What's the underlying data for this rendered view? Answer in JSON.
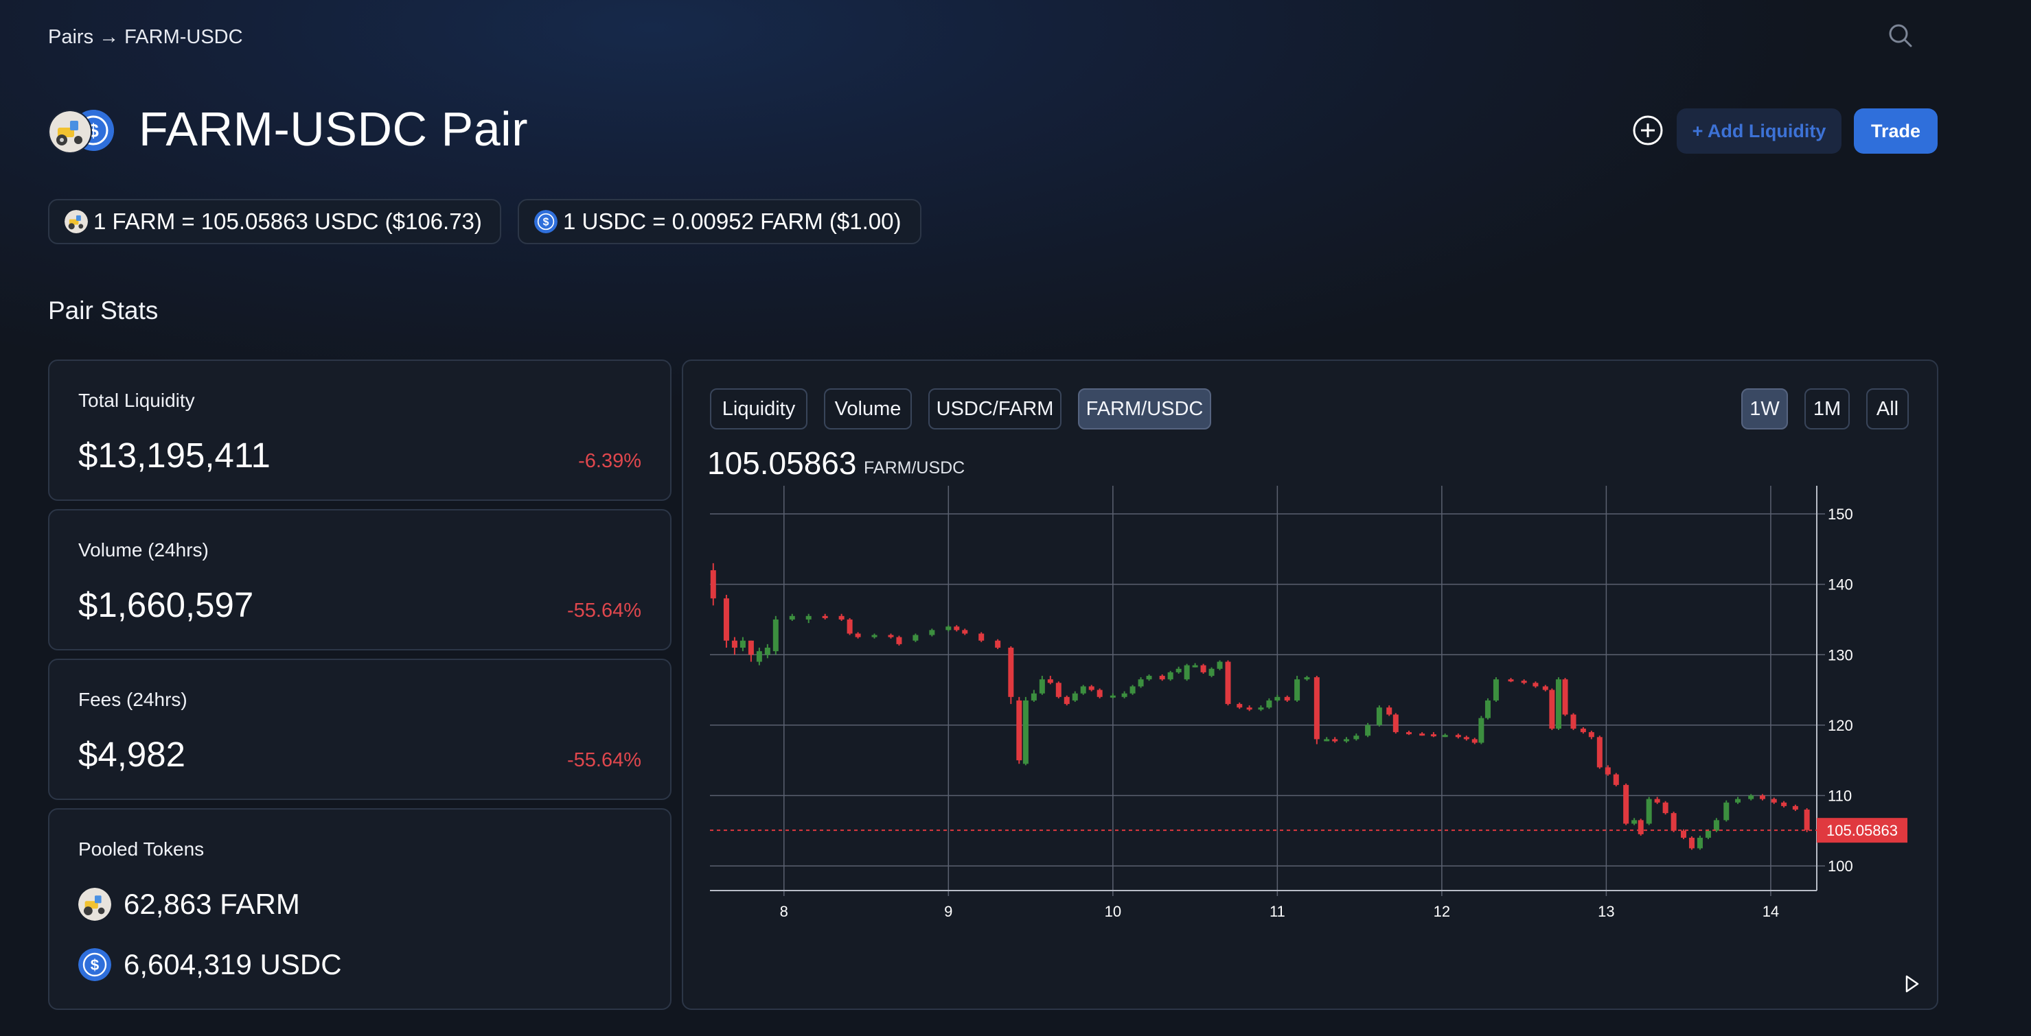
{
  "breadcrumb": "Pairs → FARM-USDC",
  "page_title": "FARM-USDC Pair",
  "actions": {
    "add_liquidity": "+ Add Liquidity",
    "trade": "Trade"
  },
  "rates": {
    "farm_rate": "1 FARM = 105.05863 USDC ($106.73)",
    "usdc_rate": "1 USDC = 0.00952 FARM ($1.00)"
  },
  "section_title": "Pair Stats",
  "stats": {
    "total_liquidity": {
      "label": "Total Liquidity",
      "value": "$13,195,411",
      "change": "-6.39%"
    },
    "volume": {
      "label": "Volume (24hrs)",
      "value": "$1,660,597",
      "change": "-55.64%"
    },
    "fees": {
      "label": "Fees (24hrs)",
      "value": "$4,982",
      "change": "-55.64%"
    }
  },
  "pooled": {
    "label": "Pooled Tokens",
    "farm": "62,863 FARM",
    "usdc": "6,604,319 USDC"
  },
  "chart_tabs": [
    "Liquidity",
    "Volume",
    "USDC/FARM",
    "FARM/USDC"
  ],
  "active_tab": "FARM/USDC",
  "range_tabs": [
    "1W",
    "1M",
    "All"
  ],
  "active_range": "1W",
  "chart_header": {
    "value": "105.05863",
    "unit": "FARM/USDC"
  },
  "colors": {
    "up": "#3c8f3f",
    "down": "#e0393f",
    "accent": "#2f6fdb",
    "current_price_line": "#e0393f"
  },
  "icons": [
    "farm-token-icon",
    "usdc-token-icon",
    "search-icon",
    "plus-circle-icon",
    "play-icon"
  ],
  "chart_data": {
    "type": "candlestick",
    "x_ticks": [
      "8",
      "9",
      "10",
      "11",
      "12",
      "13",
      "14"
    ],
    "y_ticks": [
      100,
      110,
      120,
      130,
      140,
      150
    ],
    "ylim": [
      96.5,
      154
    ],
    "xlim": [
      7.55,
      14.28
    ],
    "current_price_label": "105.05863",
    "current_price": 105.05863,
    "series": [
      {
        "x": 7.57,
        "o": 142,
        "c": 138,
        "h": 143,
        "l": 137
      },
      {
        "x": 7.65,
        "o": 138,
        "c": 132,
        "h": 138.5,
        "l": 131
      },
      {
        "x": 7.7,
        "o": 132,
        "c": 131,
        "h": 132.5,
        "l": 130
      },
      {
        "x": 7.75,
        "o": 131,
        "c": 132,
        "h": 132.5,
        "l": 130.5
      },
      {
        "x": 7.8,
        "o": 132,
        "c": 130,
        "h": 132,
        "l": 129
      },
      {
        "x": 7.85,
        "o": 129,
        "c": 130.5,
        "h": 131,
        "l": 128.5
      },
      {
        "x": 7.9,
        "o": 130,
        "c": 131,
        "h": 131.5,
        "l": 129.5
      },
      {
        "x": 7.95,
        "o": 130.5,
        "c": 135,
        "h": 135.5,
        "l": 130
      },
      {
        "x": 8.05,
        "o": 135,
        "c": 135.5,
        "h": 135.8,
        "l": 134.8
      },
      {
        "x": 8.15,
        "o": 135,
        "c": 135.5,
        "h": 135.8,
        "l": 134.5
      },
      {
        "x": 8.25,
        "o": 135.5,
        "c": 135.2,
        "h": 135.8,
        "l": 135
      },
      {
        "x": 8.35,
        "o": 135.5,
        "c": 135,
        "h": 135.8,
        "l": 134.8
      },
      {
        "x": 8.4,
        "o": 135,
        "c": 133,
        "h": 135.2,
        "l": 132.8
      },
      {
        "x": 8.45,
        "o": 133,
        "c": 132.5,
        "h": 133.2,
        "l": 132.3
      },
      {
        "x": 8.55,
        "o": 132.5,
        "c": 132.8,
        "h": 133,
        "l": 132.3
      },
      {
        "x": 8.65,
        "o": 132.8,
        "c": 132.5,
        "h": 133,
        "l": 132.3
      },
      {
        "x": 8.7,
        "o": 132.5,
        "c": 131.5,
        "h": 132.7,
        "l": 131.3
      },
      {
        "x": 8.8,
        "o": 132,
        "c": 132.8,
        "h": 133,
        "l": 131.8
      },
      {
        "x": 8.9,
        "o": 132.8,
        "c": 133.5,
        "h": 133.7,
        "l": 132.6
      },
      {
        "x": 9.0,
        "o": 133.5,
        "c": 134,
        "h": 134.2,
        "l": 133.3
      },
      {
        "x": 9.05,
        "o": 134,
        "c": 133.5,
        "h": 134.2,
        "l": 133.3
      },
      {
        "x": 9.1,
        "o": 133.5,
        "c": 133,
        "h": 133.7,
        "l": 132.8
      },
      {
        "x": 9.2,
        "o": 133,
        "c": 132,
        "h": 133.2,
        "l": 131.8
      },
      {
        "x": 9.3,
        "o": 132,
        "c": 131,
        "h": 132.2,
        "l": 130.8
      },
      {
        "x": 9.38,
        "o": 131,
        "c": 124,
        "h": 131.2,
        "l": 123
      },
      {
        "x": 9.43,
        "o": 123.5,
        "c": 115,
        "h": 124,
        "l": 114.5
      },
      {
        "x": 9.47,
        "o": 114.5,
        "c": 123.5,
        "h": 124,
        "l": 114.3
      },
      {
        "x": 9.52,
        "o": 123.5,
        "c": 124.5,
        "h": 125,
        "l": 123.3
      },
      {
        "x": 9.57,
        "o": 124.5,
        "c": 126.5,
        "h": 127,
        "l": 124.3
      },
      {
        "x": 9.62,
        "o": 126.5,
        "c": 126,
        "h": 127,
        "l": 125.8
      },
      {
        "x": 9.67,
        "o": 126,
        "c": 124,
        "h": 126.2,
        "l": 123.8
      },
      {
        "x": 9.72,
        "o": 124,
        "c": 123,
        "h": 124.2,
        "l": 122.8
      },
      {
        "x": 9.77,
        "o": 123.5,
        "c": 124.5,
        "h": 124.8,
        "l": 123.3
      },
      {
        "x": 9.82,
        "o": 124.5,
        "c": 125.5,
        "h": 125.7,
        "l": 124.3
      },
      {
        "x": 9.87,
        "o": 125.5,
        "c": 125,
        "h": 125.7,
        "l": 124.8
      },
      {
        "x": 9.92,
        "o": 125,
        "c": 124,
        "h": 125.2,
        "l": 123.8
      },
      {
        "x": 10.0,
        "o": 124,
        "c": 124.2,
        "h": 124.5,
        "l": 123.8
      },
      {
        "x": 10.07,
        "o": 124,
        "c": 124.5,
        "h": 124.8,
        "l": 123.8
      },
      {
        "x": 10.12,
        "o": 124.5,
        "c": 125.5,
        "h": 125.7,
        "l": 124.3
      },
      {
        "x": 10.17,
        "o": 125.5,
        "c": 126.5,
        "h": 126.8,
        "l": 125.3
      },
      {
        "x": 10.22,
        "o": 126.5,
        "c": 127,
        "h": 127.2,
        "l": 126.3
      },
      {
        "x": 10.3,
        "o": 127,
        "c": 126.5,
        "h": 127.2,
        "l": 126.3
      },
      {
        "x": 10.35,
        "o": 126.5,
        "c": 127.5,
        "h": 127.7,
        "l": 126.3
      },
      {
        "x": 10.4,
        "o": 127.5,
        "c": 128,
        "h": 128.3,
        "l": 127.3
      },
      {
        "x": 10.45,
        "o": 126.5,
        "c": 128.5,
        "h": 128.7,
        "l": 126.3
      },
      {
        "x": 10.5,
        "o": 128.5,
        "c": 128.5,
        "h": 128.8,
        "l": 128.2
      },
      {
        "x": 10.55,
        "o": 128.5,
        "c": 127.5,
        "h": 128.7,
        "l": 127.3
      },
      {
        "x": 10.6,
        "o": 127,
        "c": 128,
        "h": 128.2,
        "l": 126.8
      },
      {
        "x": 10.65,
        "o": 128,
        "c": 129,
        "h": 129.2,
        "l": 127.8
      },
      {
        "x": 10.7,
        "o": 129,
        "c": 123,
        "h": 129.2,
        "l": 122.8
      },
      {
        "x": 10.77,
        "o": 123,
        "c": 122.5,
        "h": 123.2,
        "l": 122.3
      },
      {
        "x": 10.83,
        "o": 122.5,
        "c": 122.3,
        "h": 122.8,
        "l": 122
      },
      {
        "x": 10.9,
        "o": 122.3,
        "c": 122.5,
        "h": 122.8,
        "l": 122
      },
      {
        "x": 10.95,
        "o": 122.5,
        "c": 123.5,
        "h": 123.8,
        "l": 122.3
      },
      {
        "x": 11.0,
        "o": 123.5,
        "c": 124,
        "h": 124.3,
        "l": 123.3
      },
      {
        "x": 11.06,
        "o": 124,
        "c": 123.5,
        "h": 124.2,
        "l": 123.3
      },
      {
        "x": 11.12,
        "o": 123.5,
        "c": 126.5,
        "h": 127,
        "l": 123.3
      },
      {
        "x": 11.18,
        "o": 126.5,
        "c": 126.8,
        "h": 127,
        "l": 126.3
      },
      {
        "x": 11.24,
        "o": 126.8,
        "c": 118,
        "h": 127,
        "l": 117.3
      },
      {
        "x": 11.3,
        "o": 118,
        "c": 118,
        "h": 118.3,
        "l": 117.7
      },
      {
        "x": 11.35,
        "o": 118,
        "c": 117.7,
        "h": 118.3,
        "l": 117.5
      },
      {
        "x": 11.42,
        "o": 117.7,
        "c": 118,
        "h": 118.3,
        "l": 117.5
      },
      {
        "x": 11.48,
        "o": 118,
        "c": 118.5,
        "h": 118.8,
        "l": 117.8
      },
      {
        "x": 11.55,
        "o": 118.5,
        "c": 120,
        "h": 120.3,
        "l": 118.3
      },
      {
        "x": 11.62,
        "o": 120,
        "c": 122.5,
        "h": 122.8,
        "l": 119.8
      },
      {
        "x": 11.68,
        "o": 122.5,
        "c": 121.5,
        "h": 122.8,
        "l": 121.3
      },
      {
        "x": 11.72,
        "o": 121.5,
        "c": 119,
        "h": 121.7,
        "l": 118.8
      },
      {
        "x": 11.8,
        "o": 119,
        "c": 118.8,
        "h": 119.2,
        "l": 118.6
      },
      {
        "x": 11.88,
        "o": 118.8,
        "c": 118.7,
        "h": 119,
        "l": 118.5
      },
      {
        "x": 11.95,
        "o": 118.7,
        "c": 118.5,
        "h": 119,
        "l": 118.3
      },
      {
        "x": 12.02,
        "o": 118.5,
        "c": 118.6,
        "h": 118.8,
        "l": 118.3
      },
      {
        "x": 12.1,
        "o": 118.6,
        "c": 118.3,
        "h": 118.8,
        "l": 118.1
      },
      {
        "x": 12.15,
        "o": 118.3,
        "c": 118,
        "h": 118.5,
        "l": 117.8
      },
      {
        "x": 12.2,
        "o": 118,
        "c": 117.5,
        "h": 118.2,
        "l": 117.3
      },
      {
        "x": 12.24,
        "o": 117.5,
        "c": 121,
        "h": 121.3,
        "l": 117.3
      },
      {
        "x": 12.28,
        "o": 121,
        "c": 123.5,
        "h": 123.8,
        "l": 120.8
      },
      {
        "x": 12.33,
        "o": 123.5,
        "c": 126.5,
        "h": 126.8,
        "l": 123.3
      },
      {
        "x": 12.42,
        "o": 126.5,
        "c": 126.3,
        "h": 126.7,
        "l": 126.1
      },
      {
        "x": 12.5,
        "o": 126.3,
        "c": 126,
        "h": 126.5,
        "l": 125.8
      },
      {
        "x": 12.57,
        "o": 126,
        "c": 125.5,
        "h": 126.2,
        "l": 125.3
      },
      {
        "x": 12.63,
        "o": 125.5,
        "c": 125,
        "h": 125.7,
        "l": 124.8
      },
      {
        "x": 12.67,
        "o": 125,
        "c": 119.5,
        "h": 125.2,
        "l": 119.3
      },
      {
        "x": 12.71,
        "o": 119.5,
        "c": 126.5,
        "h": 126.8,
        "l": 119.3
      },
      {
        "x": 12.75,
        "o": 126.5,
        "c": 121.5,
        "h": 126.7,
        "l": 121.3
      },
      {
        "x": 12.8,
        "o": 121.5,
        "c": 119.5,
        "h": 121.7,
        "l": 119.3
      },
      {
        "x": 12.86,
        "o": 119.5,
        "c": 119,
        "h": 119.7,
        "l": 118.8
      },
      {
        "x": 12.91,
        "o": 119,
        "c": 118.3,
        "h": 119.2,
        "l": 118
      },
      {
        "x": 12.96,
        "o": 118.3,
        "c": 114,
        "h": 118.5,
        "l": 113.8
      },
      {
        "x": 13.01,
        "o": 114,
        "c": 113,
        "h": 114.3,
        "l": 112.8
      },
      {
        "x": 13.06,
        "o": 113,
        "c": 111.5,
        "h": 113.2,
        "l": 111.3
      },
      {
        "x": 13.12,
        "o": 111.5,
        "c": 106,
        "h": 111.7,
        "l": 105.8
      },
      {
        "x": 13.17,
        "o": 106,
        "c": 106.5,
        "h": 106.8,
        "l": 105.8
      },
      {
        "x": 13.21,
        "o": 106.5,
        "c": 104.5,
        "h": 106.7,
        "l": 104.3
      },
      {
        "x": 13.26,
        "o": 106,
        "c": 109.5,
        "h": 109.8,
        "l": 105.8
      },
      {
        "x": 13.31,
        "o": 109.5,
        "c": 109,
        "h": 109.8,
        "l": 108.8
      },
      {
        "x": 13.36,
        "o": 109,
        "c": 107.5,
        "h": 109.2,
        "l": 107.3
      },
      {
        "x": 13.41,
        "o": 107.5,
        "c": 105,
        "h": 107.7,
        "l": 104.8
      },
      {
        "x": 13.47,
        "o": 105,
        "c": 104,
        "h": 105.2,
        "l": 103.8
      },
      {
        "x": 13.52,
        "o": 104,
        "c": 102.5,
        "h": 104.2,
        "l": 102.3
      },
      {
        "x": 13.57,
        "o": 102.5,
        "c": 104,
        "h": 104.3,
        "l": 102.3
      },
      {
        "x": 13.62,
        "o": 104,
        "c": 105,
        "h": 105.2,
        "l": 103.8
      },
      {
        "x": 13.67,
        "o": 105,
        "c": 106.5,
        "h": 106.8,
        "l": 104.8
      },
      {
        "x": 13.73,
        "o": 106.5,
        "c": 109,
        "h": 109.3,
        "l": 106.3
      },
      {
        "x": 13.8,
        "o": 109,
        "c": 109.5,
        "h": 109.8,
        "l": 108.8
      },
      {
        "x": 13.88,
        "o": 109.5,
        "c": 110,
        "h": 110.2,
        "l": 109.3
      },
      {
        "x": 13.95,
        "o": 110,
        "c": 109.5,
        "h": 110.2,
        "l": 109.3
      },
      {
        "x": 14.02,
        "o": 109.5,
        "c": 109,
        "h": 109.7,
        "l": 108.8
      },
      {
        "x": 14.08,
        "o": 109,
        "c": 108.5,
        "h": 109.2,
        "l": 108.3
      },
      {
        "x": 14.15,
        "o": 108.5,
        "c": 108,
        "h": 108.7,
        "l": 107.8
      },
      {
        "x": 14.22,
        "o": 108,
        "c": 105.1,
        "h": 108.2,
        "l": 104.8
      }
    ]
  }
}
